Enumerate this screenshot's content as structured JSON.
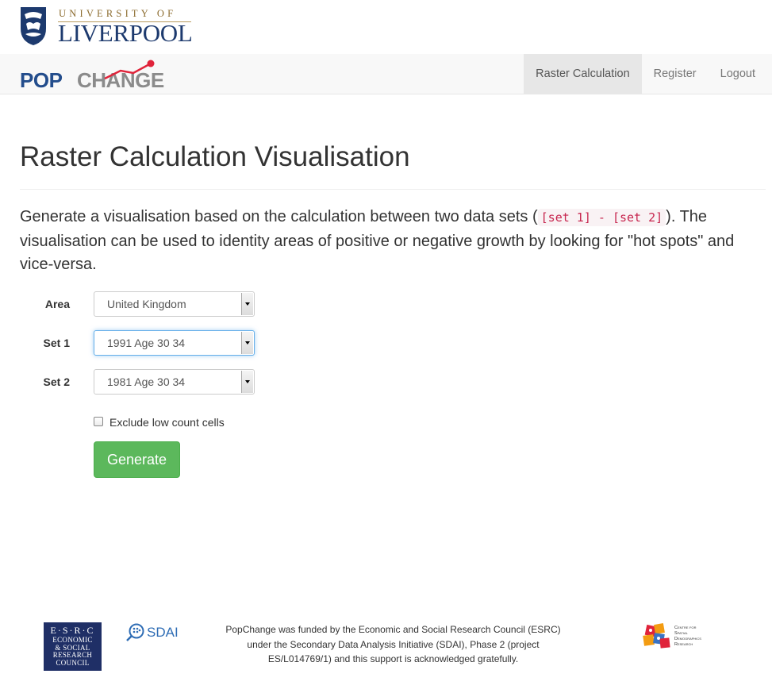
{
  "university": {
    "top_line": "UNIVERSITY OF",
    "name": "LIVERPOOL",
    "crest_icon": "university-crest-icon"
  },
  "navbar": {
    "brand_pop": "POP",
    "brand_change": "CHANGE",
    "items": [
      {
        "label": "Raster Calculation",
        "active": true
      },
      {
        "label": "Register",
        "active": false
      },
      {
        "label": "Logout",
        "active": false
      }
    ]
  },
  "page": {
    "title": "Raster Calculation Visualisation",
    "lead_before": "Generate a visualisation based on the calculation between two data sets (",
    "lead_code": "[set 1] - [set 2]",
    "lead_after": "). The visualisation can be used to identity areas of positive or negative growth by looking for \"hot spots\" and vice-versa."
  },
  "form": {
    "area": {
      "label": "Area",
      "value": "United Kingdom"
    },
    "set1": {
      "label": "Set 1",
      "value": "1991 Age 30 34"
    },
    "set2": {
      "label": "Set 2",
      "value": "1981 Age 30 34"
    },
    "exclude_label": "Exclude low count cells",
    "exclude_checked": false,
    "generate_label": "Generate"
  },
  "footer": {
    "esrc_line1": "E·S·R·C",
    "esrc_lines": [
      "ECONOMIC",
      "& SOCIAL",
      "RESEARCH",
      "COUNCIL"
    ],
    "sdai_label": "SDAI",
    "funding_text": "PopChange was funded by the Economic and Social Research Council (ESRC) under the Secondary Data Analysis Initiative (SDAI), Phase 2 (project ES/L014769/1) and this support is acknowledged gratefully.",
    "csdr_lines": [
      "Centre for",
      "Spatial",
      "Demographics",
      "Research"
    ]
  },
  "colors": {
    "brand_blue": "#234d8c",
    "brand_grey": "#8b8b8b",
    "brand_red": "#e0233a",
    "button_green": "#5cb85c",
    "code_red": "#c7254e"
  }
}
